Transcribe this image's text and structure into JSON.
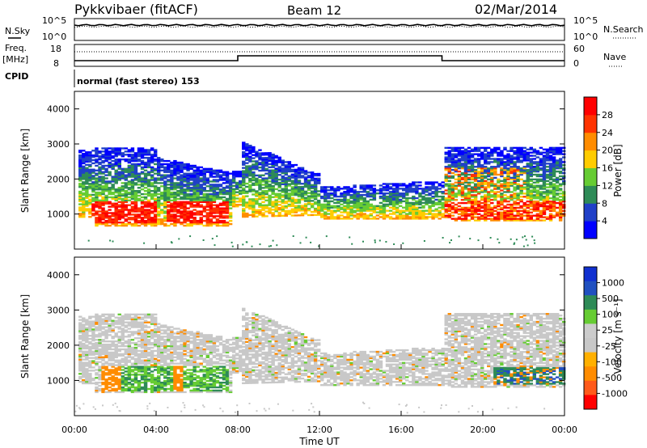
{
  "header": {
    "station": "Pykkvibaer (fitACF)",
    "beam": "Beam 12",
    "date": "02/Mar/2014"
  },
  "status_panels": {
    "nsky_label": "N.Sky",
    "nsky_ticks": [
      "10^5",
      "10^0"
    ],
    "nsearch_label": "N.Search",
    "nsearch_ticks": [
      "10^5",
      "10^0"
    ],
    "freq_label": "Freq.",
    "freq_unit": "[MHz]",
    "freq_ticks": [
      "18",
      "8"
    ],
    "nave_label": "Nave",
    "nave_ticks": [
      "60",
      "0"
    ],
    "cpid_label": "CPID",
    "cpid_text": "normal (fast stereo) 153"
  },
  "colors": {
    "power": [
      "#0000ff",
      "#2040c8",
      "#2e8b57",
      "#66cc33",
      "#ffcc00",
      "#ff8c00",
      "#ff3300",
      "#ff0000"
    ],
    "velocity": [
      "#ff0000",
      "#ff5a1a",
      "#ff8c00",
      "#ffb000",
      "#c8c8c8",
      "#cccccc",
      "#66cc33",
      "#2e8b57",
      "#2050c0",
      "#1030d0"
    ]
  },
  "chart_data": [
    {
      "type": "heatmap",
      "panel": "power",
      "ylabel": "Slant Range [km]",
      "ylim": [
        0,
        4500
      ],
      "yticks": [
        "1000",
        "2000",
        "3000",
        "4000"
      ],
      "xlim": [
        0,
        24
      ],
      "colorbar_label": "Power [dB]",
      "colorbar_ticks": [
        "4",
        "8",
        "12",
        "16",
        "20",
        "24",
        "28"
      ],
      "clim": [
        0,
        32
      ]
    },
    {
      "type": "heatmap",
      "panel": "velocity",
      "ylabel": "Slant Range [km]",
      "ylim": [
        0,
        4500
      ],
      "yticks": [
        "1000",
        "2000",
        "3000",
        "4000"
      ],
      "xlim": [
        0,
        24
      ],
      "xlabel": "Time UT",
      "xticks": [
        "00:00",
        "04:00",
        "08:00",
        "12:00",
        "16:00",
        "20:00",
        "00:00"
      ],
      "colorbar_label": "Velocity [m s⁻¹]",
      "colorbar_ticks": [
        "1000",
        "500",
        "100",
        "25",
        "-25",
        "-100",
        "-500",
        "-1000"
      ]
    }
  ]
}
